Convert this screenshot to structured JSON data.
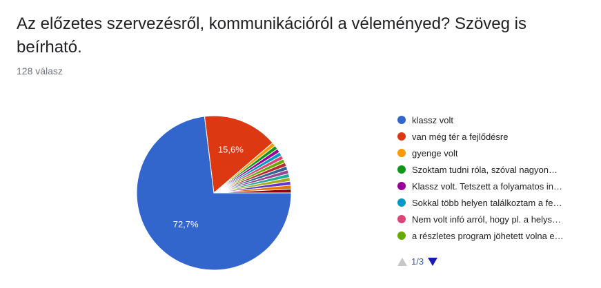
{
  "question": {
    "title": "Az előzetes szervezésről, kommunikációról a véleményed? Szöveg is beírható.",
    "response_count": "128 válasz"
  },
  "chart_data": {
    "type": "pie",
    "slices": [
      {
        "label": "klassz volt",
        "value": 72.7,
        "color": "#3366cc",
        "data_label": "72,7%"
      },
      {
        "label": "van még tér a fejlődésre",
        "value": 15.6,
        "color": "#dc3912",
        "data_label": "15,6%"
      },
      {
        "label": "gyenge volt",
        "value": 0.8,
        "color": "#ff9900"
      },
      {
        "label": "Szoktam tudni róla, szóval nagyon…",
        "value": 0.8,
        "color": "#109618"
      },
      {
        "label": "Klassz volt. Tetszett a folyamatos in…",
        "value": 0.8,
        "color": "#990099"
      },
      {
        "label": "Sokkal több helyen találkoztam a fe…",
        "value": 0.8,
        "color": "#0099c6"
      },
      {
        "label": "Nem volt infó arról, hogy pl. a helys…",
        "value": 0.8,
        "color": "#dd4477"
      },
      {
        "label": "a részletes program jöhetett volna e…",
        "value": 0.8,
        "color": "#66aa00"
      },
      {
        "value": 0.8,
        "color": "#b82e2e"
      },
      {
        "value": 0.8,
        "color": "#316395"
      },
      {
        "value": 0.8,
        "color": "#994499"
      },
      {
        "value": 0.8,
        "color": "#22aa99"
      },
      {
        "value": 0.8,
        "color": "#aaaa11"
      },
      {
        "value": 0.8,
        "color": "#6633cc"
      },
      {
        "value": 0.8,
        "color": "#e67300"
      },
      {
        "value": 0.8,
        "color": "#8b0707"
      }
    ]
  },
  "legend_pager": {
    "page_text": "1/3"
  }
}
